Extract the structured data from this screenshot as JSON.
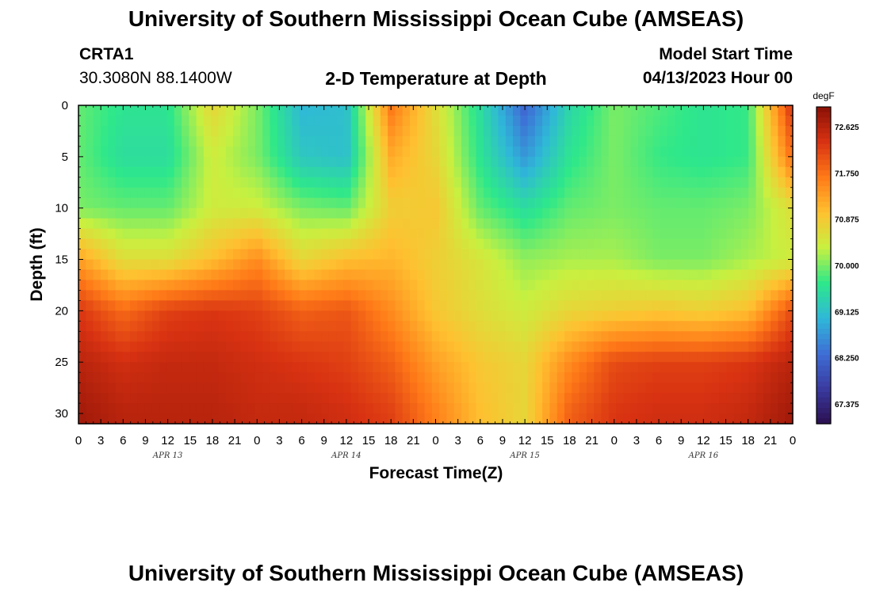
{
  "header": {
    "title": "University of Southern Mississippi Ocean Cube (AMSEAS)",
    "station_id": "CRTA1",
    "station_coords": "30.3080N  88.1400W",
    "plot_title": "2-D Temperature at Depth",
    "start_label": "Model Start Time",
    "start_value": "04/13/2023 Hour 00"
  },
  "footer": {
    "title": "University of Southern Mississippi Ocean Cube (AMSEAS)"
  },
  "colors": {
    "colormap": [
      "#2b1050",
      "#3a3aa0",
      "#3e6fd6",
      "#2fb8d8",
      "#2ee88a",
      "#c8f040",
      "#ffc030",
      "#ff7a18",
      "#d83212",
      "#8a1006"
    ]
  },
  "chart_data": {
    "type": "heatmap",
    "title": "2-D Temperature at Depth",
    "xlabel": "Forecast Time(Z)",
    "ylabel": "Depth (ft)",
    "x_hours": [
      0,
      6,
      12,
      18,
      24,
      30,
      36,
      42,
      48,
      54,
      60,
      66,
      72,
      78,
      84,
      90,
      96
    ],
    "depths_ft": [
      0,
      5,
      10,
      15,
      20,
      25,
      30
    ],
    "values_degF": [
      [
        69.9,
        69.6,
        69.6,
        70.7,
        70.0,
        69.0,
        69.1,
        71.7,
        70.6,
        69.5,
        68.2,
        69.4,
        70.0,
        69.8,
        69.6,
        69.7,
        72.4
      ],
      [
        69.9,
        69.5,
        69.5,
        70.4,
        70.0,
        69.2,
        69.1,
        71.2,
        70.7,
        69.6,
        68.7,
        69.6,
        70.0,
        69.7,
        69.6,
        69.7,
        71.8
      ],
      [
        70.0,
        69.9,
        69.9,
        70.4,
        70.4,
        70.0,
        69.9,
        70.8,
        70.9,
        69.9,
        69.5,
        69.9,
        70.0,
        69.9,
        69.9,
        70.0,
        70.6
      ],
      [
        71.3,
        70.6,
        70.6,
        71.0,
        71.5,
        70.7,
        71.0,
        71.1,
        70.8,
        70.5,
        70.1,
        70.2,
        70.2,
        70.0,
        70.0,
        70.2,
        70.4
      ],
      [
        72.3,
        71.8,
        72.2,
        72.3,
        72.2,
        71.9,
        72.0,
        71.5,
        70.9,
        70.6,
        70.4,
        70.7,
        70.8,
        70.9,
        70.8,
        71.0,
        72.1
      ],
      [
        72.6,
        72.4,
        72.5,
        72.5,
        72.4,
        72.3,
        72.2,
        71.9,
        71.3,
        70.9,
        70.7,
        71.5,
        72.1,
        72.2,
        72.2,
        72.3,
        72.6
      ],
      [
        72.8,
        72.6,
        72.6,
        72.6,
        72.5,
        72.5,
        72.4,
        72.2,
        71.6,
        71.0,
        70.7,
        71.9,
        72.3,
        72.4,
        72.4,
        72.5,
        72.8
      ]
    ],
    "y_range_ft": [
      0,
      31
    ],
    "x_range_hours": [
      0,
      96
    ],
    "x_tick_labels": [
      "0",
      "3",
      "6",
      "9",
      "12",
      "15",
      "18",
      "21",
      "0",
      "3",
      "6",
      "9",
      "12",
      "15",
      "18",
      "21",
      "0",
      "3",
      "6",
      "9",
      "12",
      "15",
      "18",
      "21",
      "0",
      "3",
      "6",
      "9",
      "12",
      "15",
      "18",
      "21",
      "0"
    ],
    "y_tick_labels": [
      "0",
      "5",
      "10",
      "15",
      "20",
      "25",
      "30"
    ],
    "date_labels": [
      "APR 13",
      "APR 14",
      "APR 15",
      "APR 16"
    ],
    "colorbar": {
      "unit": "degF",
      "min": 67.0,
      "max": 73.0,
      "tick_labels": [
        "72.625",
        "71.750",
        "70.875",
        "70.000",
        "69.125",
        "68.250",
        "67.375"
      ]
    }
  }
}
